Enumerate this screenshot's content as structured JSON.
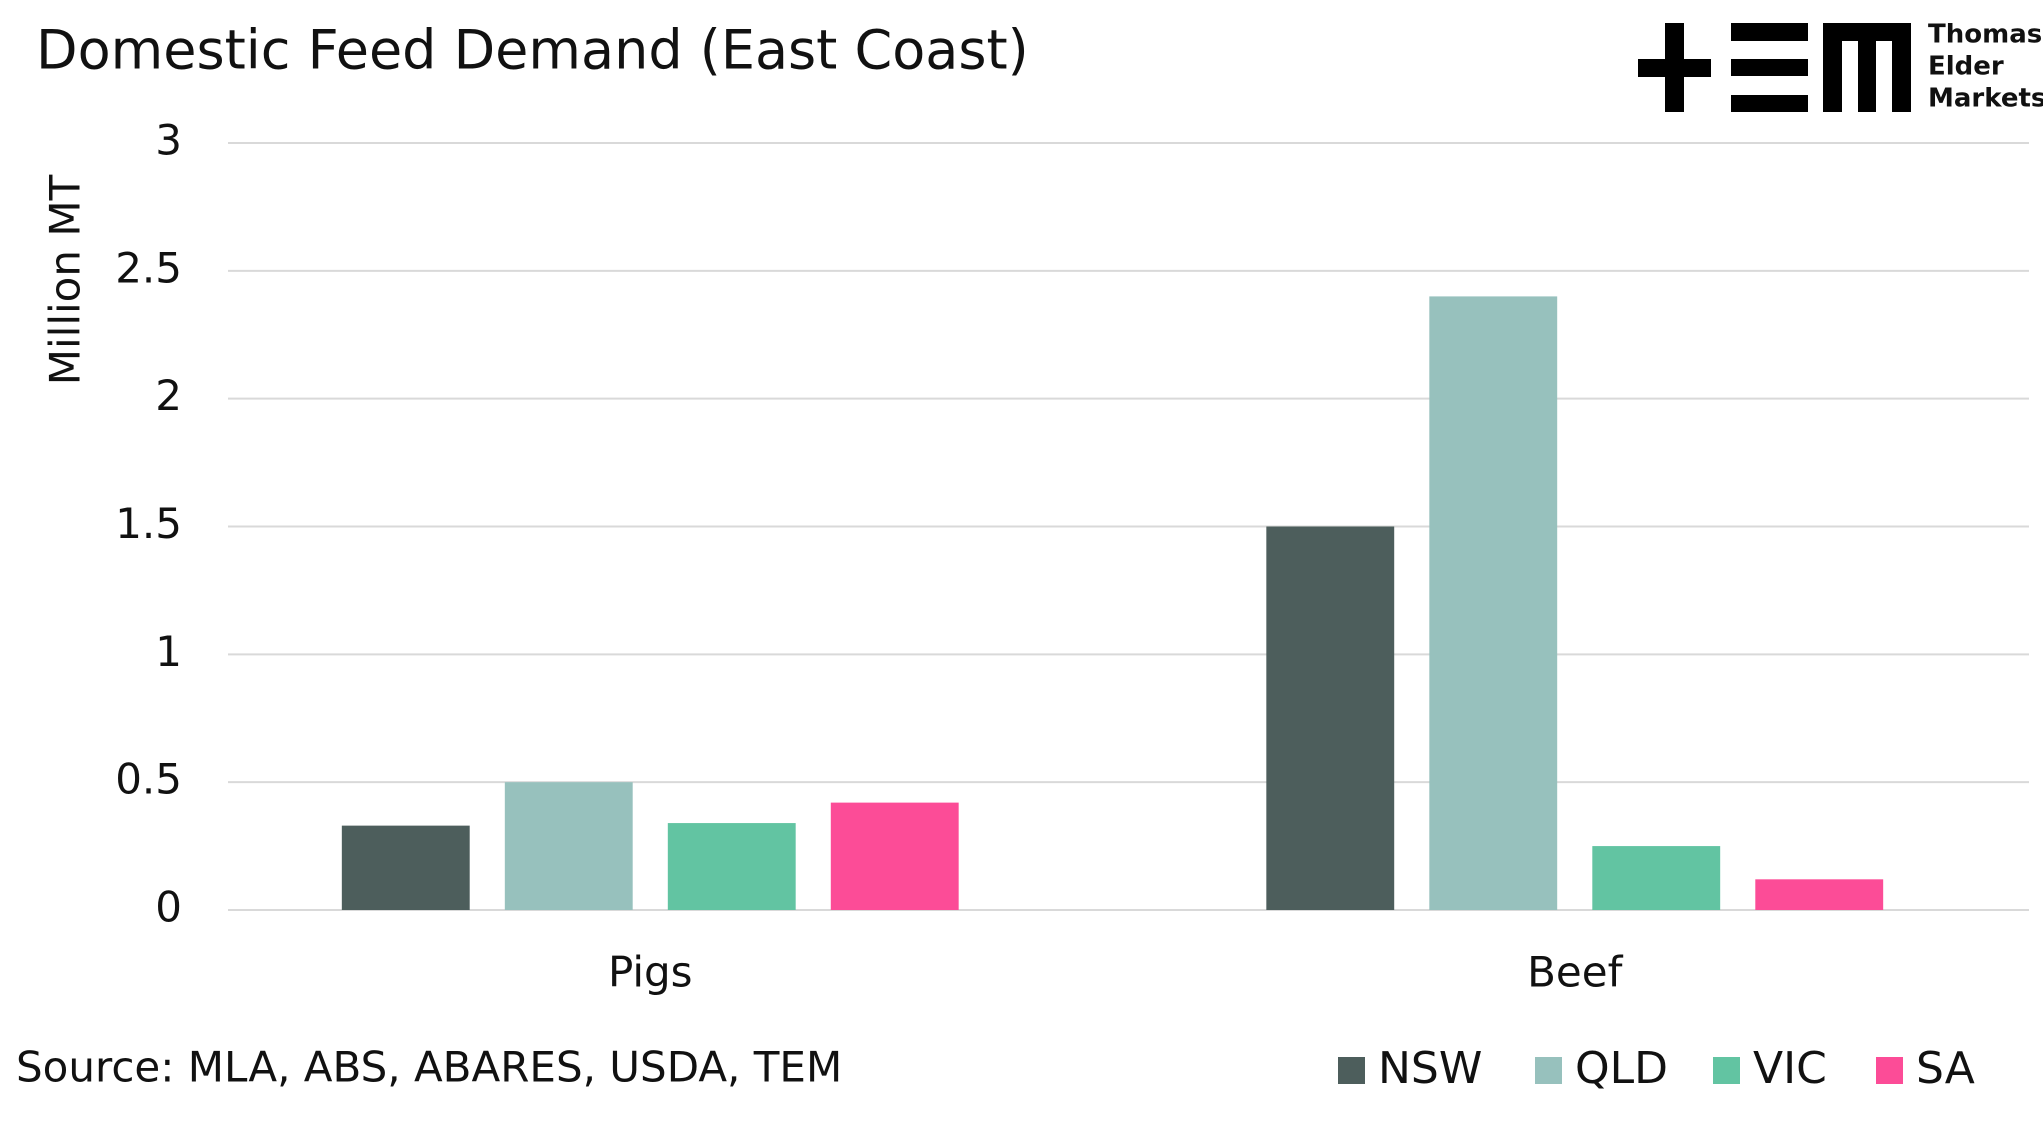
{
  "chart_data": {
    "type": "bar",
    "title": "Domestic Feed Demand (East Coast)",
    "y_label": "Million MT",
    "categories": [
      "Pigs",
      "Beef"
    ],
    "series": [
      {
        "name": "NSW",
        "color": "#4d5e5c",
        "values": [
          0.33,
          1.5
        ]
      },
      {
        "name": "QLD",
        "color": "#97c1bd",
        "values": [
          0.5,
          2.4
        ]
      },
      {
        "name": "VIC",
        "color": "#62c4a2",
        "values": [
          0.34,
          0.25
        ]
      },
      {
        "name": "SA",
        "color": "#fc4c97",
        "values": [
          0.42,
          0.12
        ]
      }
    ],
    "ylim": [
      0,
      3
    ],
    "yticks": [
      0,
      0.5,
      1,
      1.5,
      2,
      2.5,
      3
    ],
    "grid": true,
    "legend": "bottom-right",
    "source": "Source: MLA, ABS, ABARES, USDA, TEM"
  },
  "logo": [
    "Thomas",
    "Elder",
    "Markets"
  ]
}
